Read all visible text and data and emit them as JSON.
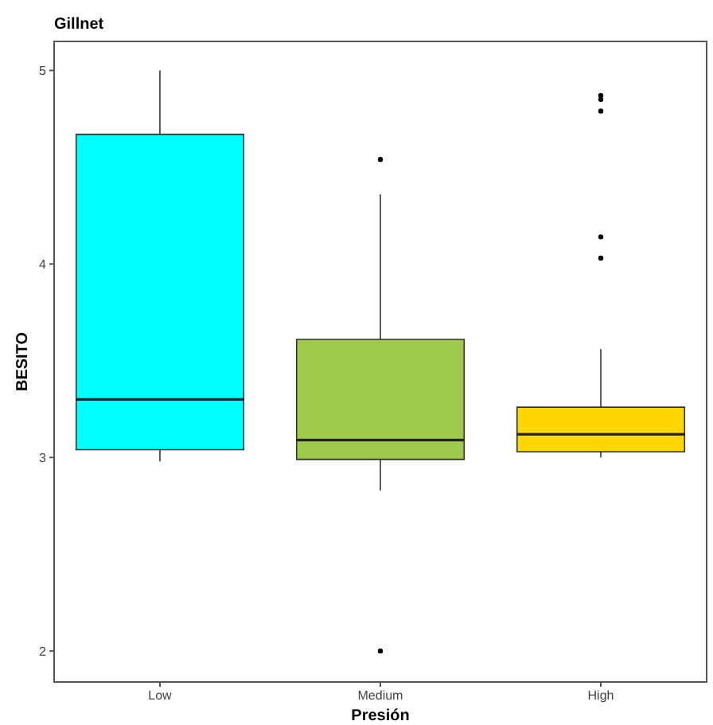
{
  "chart_data": {
    "type": "box",
    "title": "Gillnet",
    "xlabel": "Presión",
    "ylabel": "BESITO",
    "categories": [
      "Low",
      "Medium",
      "High"
    ],
    "ylim": [
      1.84,
      5.15
    ],
    "yticks": [
      2,
      3,
      4,
      5
    ],
    "grid": false,
    "series": [
      {
        "colors": [
          "#00ffff",
          "#9fc94a",
          "#ffd700"
        ],
        "boxes": [
          {
            "low": 2.98,
            "q1": 3.04,
            "median": 3.3,
            "q3": 4.67,
            "high": 5.0
          },
          {
            "low": 2.83,
            "q1": 2.99,
            "median": 3.09,
            "q3": 3.61,
            "high": 4.36,
            "outliers": [
              4.54,
              2.0
            ]
          },
          {
            "low": 3.0,
            "q1": 3.03,
            "median": 3.12,
            "q3": 3.26,
            "high": 3.56,
            "outliers": [
              4.87,
              4.85,
              4.79,
              4.14,
              4.03
            ]
          }
        ]
      }
    ]
  }
}
